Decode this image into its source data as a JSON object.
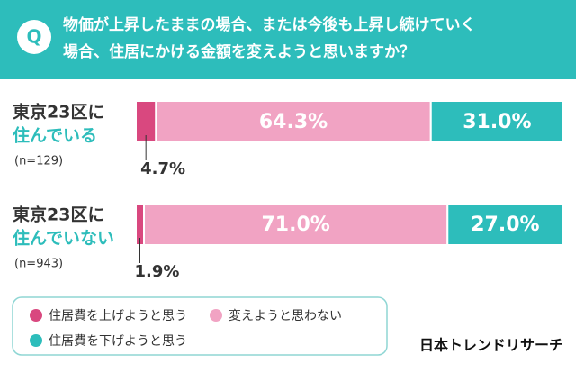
{
  "chart_data": {
    "type": "stacked-bar-horizontal",
    "badge": "Q",
    "question": [
      "物価が上昇したままの場合、または今後も上昇し続けていく",
      "場合、住居にかける金額を変えようと思いますか？"
    ],
    "categories": [
      [
        "東京23区に",
        "住んでいる"
      ],
      [
        "東京23区に",
        "住んでいない"
      ]
    ],
    "sample_sizes": [
      "(n=129)",
      "(n=943)"
    ],
    "xlim": [
      0,
      100
    ],
    "series": [
      {
        "name": "住居費を上げようと思う",
        "color": "#d9487f",
        "values": [
          4.7,
          1.9
        ],
        "value_labels": [
          "4.7%",
          "1.9%"
        ]
      },
      {
        "name": "変えようと思わない",
        "color": "#f1a3c3",
        "values": [
          64.3,
          71.0
        ],
        "value_labels": [
          "64.3%",
          "71.0%"
        ]
      },
      {
        "name": "住居費を下げようと思う",
        "color": "#2dbdbb",
        "values": [
          31.0,
          27.0
        ],
        "value_labels": [
          "31.0%",
          "27.0%"
        ]
      }
    ],
    "source": "日本トレンドリサーチ"
  }
}
